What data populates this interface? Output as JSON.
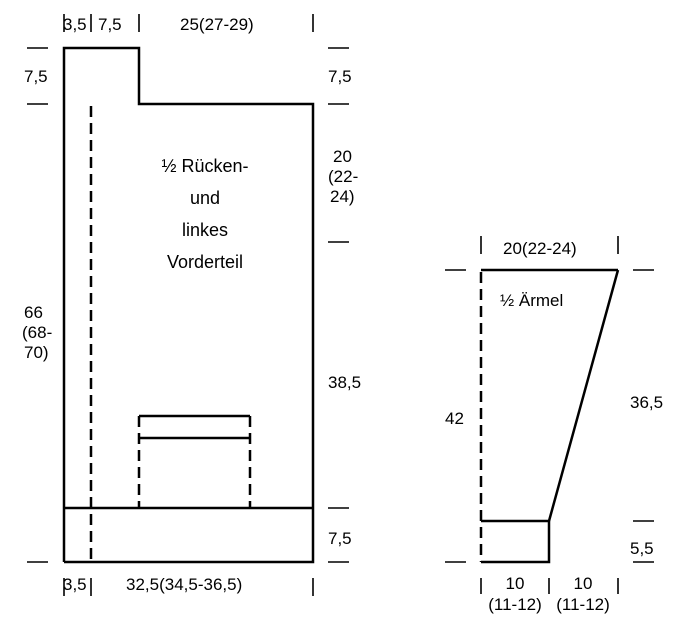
{
  "back": {
    "title_lines": [
      "½ Rücken-",
      "und",
      "linkes",
      "Vorderteil"
    ],
    "dims": {
      "top_left": "3,5",
      "top_mid": "7,5",
      "top_right": "25(27-29)",
      "left_top": "7,5",
      "left_height_1": "66",
      "left_height_2": "(68-",
      "left_height_3": "70)",
      "right_top": "7,5",
      "right_mid_1": "20",
      "right_mid_2": "(22-",
      "right_mid_3": "24)",
      "right_body": "38,5",
      "right_bottom": "7,5",
      "bottom_left": "3,5",
      "bottom_width": "32,5(34,5-36,5)"
    }
  },
  "sleeve": {
    "title": "½ Ärmel",
    "dims": {
      "top_width": "20(22-24)",
      "left_height": "42",
      "right_height": "36,5",
      "right_cuff": "5,5",
      "bottom_left_1": "10",
      "bottom_left_2": "(11-12)",
      "bottom_right_1": "10",
      "bottom_right_2": "(11-12)"
    }
  }
}
